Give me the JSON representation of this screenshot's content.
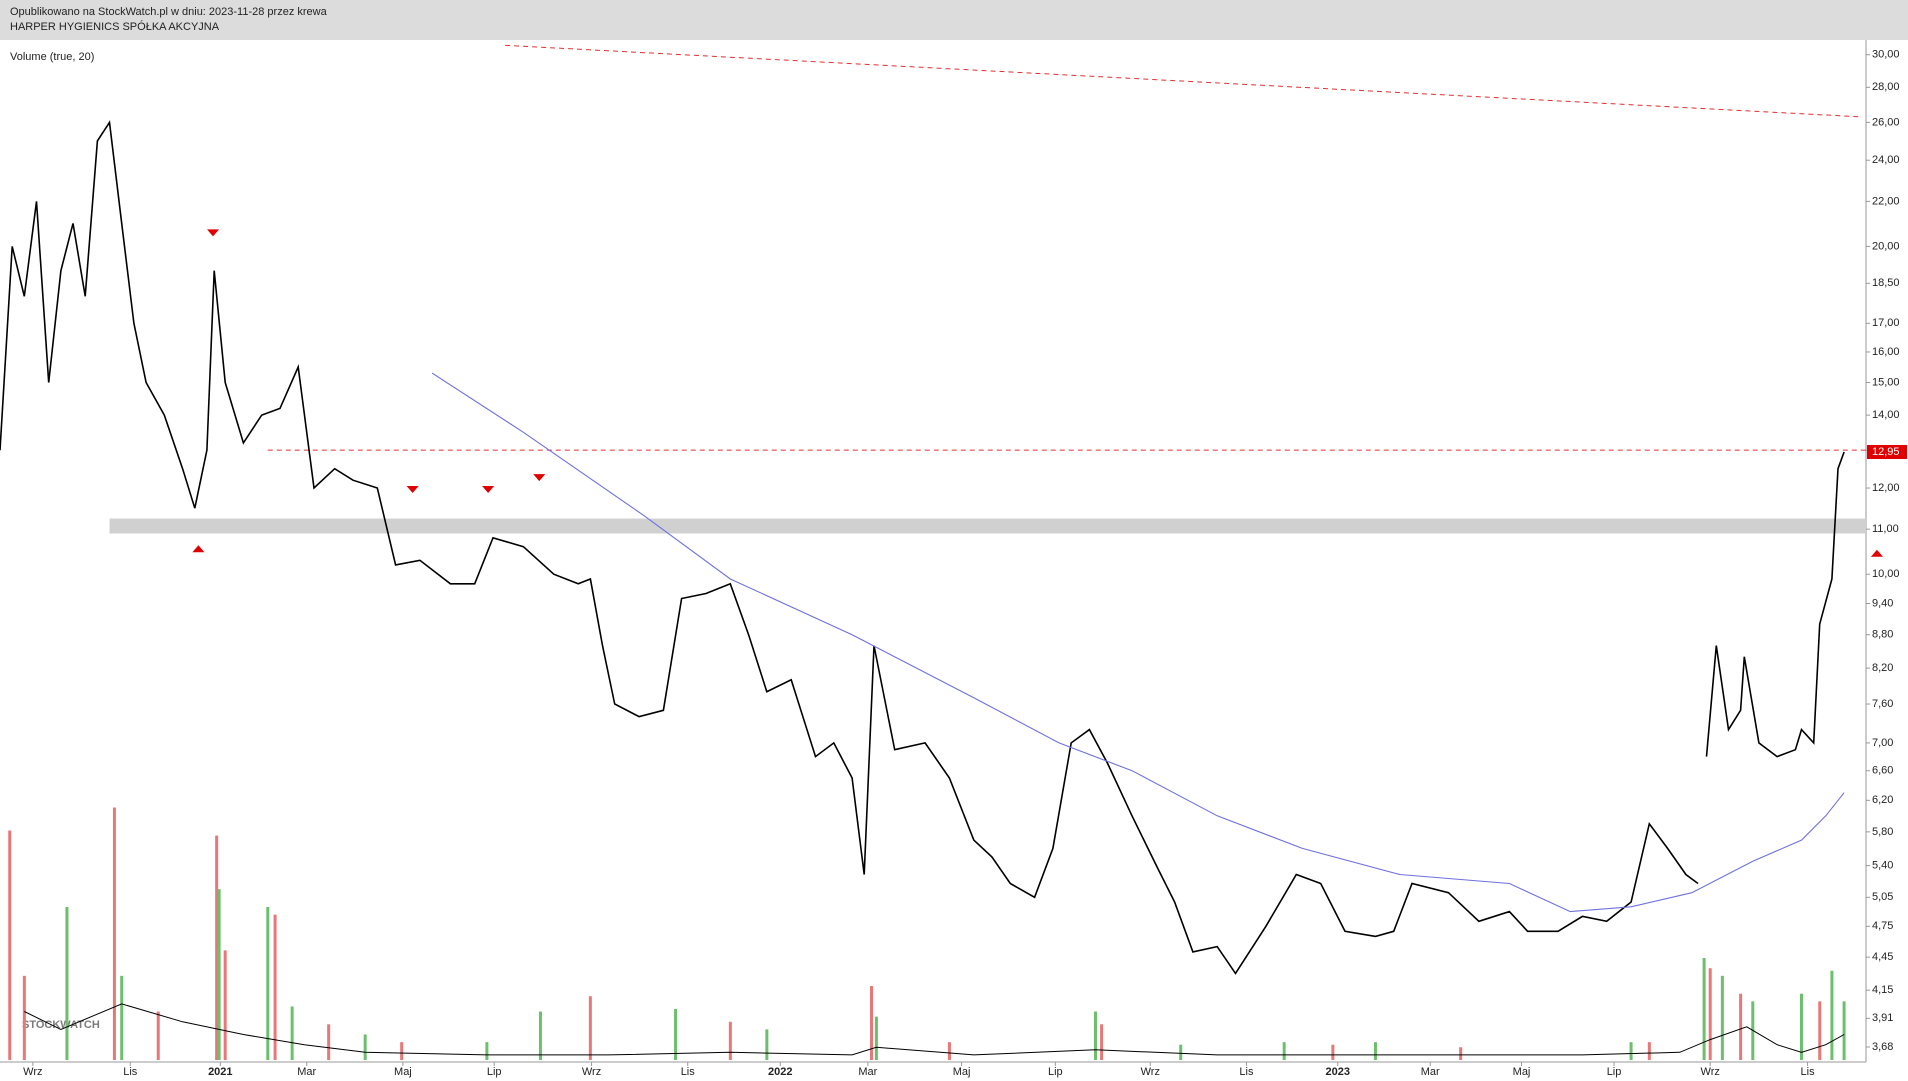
{
  "header": {
    "line1": "Opublikowano na StockWatch.pl w dniu: 2023-11-28 przez krewa",
    "line2": "HARPER HYGIENICS SPÓŁKA AKCYJNA"
  },
  "chart_data": {
    "type": "line",
    "log_scale": true,
    "indicator_label": "Volume (true, 20)",
    "watermark": "STOCKWATCH",
    "xlim": [
      0,
      1533
    ],
    "ylim": [
      3.68,
      30
    ],
    "yticks": [
      {
        "value": 30,
        "label": "30,00"
      },
      {
        "value": 28,
        "label": "28,00"
      },
      {
        "value": 26,
        "label": "26,00"
      },
      {
        "value": 24,
        "label": "24,00"
      },
      {
        "value": 22,
        "label": "22,00"
      },
      {
        "value": 20,
        "label": "20,00"
      },
      {
        "value": 18.5,
        "label": "18,50"
      },
      {
        "value": 17,
        "label": "17,00"
      },
      {
        "value": 16,
        "label": "16,00"
      },
      {
        "value": 15,
        "label": "15,00"
      },
      {
        "value": 14,
        "label": "14,00"
      },
      {
        "value": 13,
        "label": "13,00"
      },
      {
        "value": 12,
        "label": "12,00"
      },
      {
        "value": 11,
        "label": "11,00"
      },
      {
        "value": 10,
        "label": "10,00"
      },
      {
        "value": 9.4,
        "label": "9,40"
      },
      {
        "value": 8.8,
        "label": "8,80"
      },
      {
        "value": 8.2,
        "label": "8,20"
      },
      {
        "value": 7.6,
        "label": "7,60"
      },
      {
        "value": 7,
        "label": "7,00"
      },
      {
        "value": 6.6,
        "label": "6,60"
      },
      {
        "value": 6.2,
        "label": "6,20"
      },
      {
        "value": 5.8,
        "label": "5,80"
      },
      {
        "value": 5.4,
        "label": "5,40"
      },
      {
        "value": 5.05,
        "label": "5,05"
      },
      {
        "value": 4.75,
        "label": "4,75"
      },
      {
        "value": 4.45,
        "label": "4,45"
      },
      {
        "value": 4.15,
        "label": "4,15"
      },
      {
        "value": 3.91,
        "label": "3,91"
      },
      {
        "value": 3.68,
        "label": "3,68"
      }
    ],
    "xticks": [
      {
        "value": 27,
        "label": "Wrz"
      },
      {
        "value": 107,
        "label": "Lis"
      },
      {
        "value": 181,
        "label": "2021"
      },
      {
        "value": 252,
        "label": "Mar"
      },
      {
        "value": 331,
        "label": "Maj"
      },
      {
        "value": 406,
        "label": "Lip"
      },
      {
        "value": 486,
        "label": "Wrz"
      },
      {
        "value": 565,
        "label": "Lis"
      },
      {
        "value": 641,
        "label": "2022"
      },
      {
        "value": 713,
        "label": "Mar"
      },
      {
        "value": 790,
        "label": "Maj"
      },
      {
        "value": 867,
        "label": "Lip"
      },
      {
        "value": 945,
        "label": "Wrz"
      },
      {
        "value": 1024,
        "label": "Lis"
      },
      {
        "value": 1099,
        "label": "2023"
      },
      {
        "value": 1175,
        "label": "Mar"
      },
      {
        "value": 1250,
        "label": "Maj"
      },
      {
        "value": 1326,
        "label": "Lip"
      },
      {
        "value": 1405,
        "label": "Wrz"
      },
      {
        "value": 1485,
        "label": "Lis"
      }
    ],
    "series": [
      {
        "color": "#000000",
        "x": [
          0,
          10,
          20,
          30,
          40,
          50,
          60,
          70,
          80,
          90,
          100,
          110,
          120,
          135,
          150,
          160,
          170,
          176,
          185,
          200,
          215,
          230,
          245,
          258,
          275,
          290,
          310,
          325,
          345,
          370,
          390,
          405,
          430,
          455,
          475,
          485,
          495,
          505,
          525,
          545,
          560,
          580,
          600,
          615,
          630,
          650,
          670,
          685,
          700,
          710,
          718,
          735,
          760,
          780,
          800,
          815,
          830,
          850,
          865,
          880,
          895,
          910,
          930,
          950,
          965,
          980,
          1000,
          1015,
          1040,
          1065,
          1085,
          1105,
          1130,
          1145,
          1160,
          1190,
          1215,
          1240,
          1255,
          1280,
          1300,
          1320,
          1340,
          1355,
          1370,
          1385,
          1395,
          1399,
          1402,
          1410,
          1420,
          1430,
          1433,
          1445,
          1460,
          1475,
          1480,
          1490,
          1495,
          1505,
          1510,
          1515
        ],
        "values": [
          13,
          20,
          18,
          22,
          15,
          19,
          21,
          18,
          25,
          26,
          21,
          17,
          15,
          14,
          12.5,
          11.5,
          13,
          19,
          15,
          13.2,
          14,
          14.2,
          15.5,
          12,
          12.5,
          12.2,
          12,
          10.2,
          10.3,
          9.8,
          9.8,
          10.8,
          10.6,
          10,
          9.8,
          9.9,
          8.6,
          7.6,
          7.4,
          7.5,
          9.5,
          9.6,
          9.8,
          8.8,
          7.8,
          8,
          6.8,
          7,
          6.5,
          5.3,
          8.6,
          6.9,
          7,
          6.5,
          5.7,
          5.5,
          5.2,
          5.05,
          5.6,
          7,
          7.2,
          6.7,
          6,
          5.4,
          5,
          4.5,
          4.55,
          4.3,
          4.75,
          5.3,
          5.2,
          4.7,
          4.65,
          4.7,
          5.2,
          5.1,
          4.8,
          4.9,
          4.7,
          4.7,
          4.85,
          4.8,
          5,
          5.9,
          5.6,
          5.3,
          5.2,
          null,
          6.8,
          8.6,
          7.2,
          7.5,
          8.4,
          7,
          6.8,
          6.9,
          7.2,
          7,
          9,
          9.9,
          12.5,
          12.95
        ]
      },
      {
        "color": "#7070e0",
        "x": [
          355,
          430,
          530,
          600,
          700,
          800,
          870,
          930,
          1000,
          1070,
          1150,
          1240,
          1290,
          1340,
          1390,
          1440,
          1480,
          1500,
          1515
        ],
        "values": [
          15.3,
          13.5,
          11.3,
          9.9,
          8.8,
          7.7,
          7,
          6.6,
          6,
          5.6,
          5.3,
          5.2,
          4.9,
          4.95,
          5.1,
          5.45,
          5.7,
          6,
          6.3
        ]
      }
    ],
    "volume": {
      "vlim": [
        0,
        100
      ],
      "series": [
        {
          "color": "#e87878",
          "x": [
            8,
            20,
            94,
            130,
            178,
            185,
            226,
            270,
            330,
            485,
            600,
            716,
            780,
            905,
            1095,
            1200,
            1355,
            1405,
            1430,
            1495
          ],
          "values": [
            90,
            33,
            99,
            19,
            88,
            43,
            57,
            14,
            7,
            25,
            15,
            29,
            7,
            14,
            6,
            5,
            7,
            36,
            26,
            23
          ]
        },
        {
          "color": "#6cbf6c",
          "x": [
            55,
            100,
            180,
            220,
            240,
            300,
            400,
            444,
            555,
            630,
            720,
            900,
            970,
            1055,
            1130,
            1340,
            1400,
            1415,
            1440,
            1480,
            1505,
            1515
          ],
          "values": [
            60,
            33,
            67,
            60,
            21,
            10,
            7,
            19,
            20,
            12,
            17,
            19,
            6,
            7,
            7,
            7,
            40,
            33,
            23,
            26,
            35,
            23
          ]
        }
      ],
      "average": {
        "color": "#000000",
        "x": [
          20,
          50,
          100,
          150,
          200,
          250,
          300,
          400,
          500,
          600,
          700,
          720,
          800,
          900,
          1000,
          1100,
          1300,
          1380,
          1405,
          1435,
          1460,
          1480,
          1500,
          1515
        ],
        "values": [
          19,
          12,
          22,
          15,
          10,
          6,
          3,
          2,
          2,
          3,
          2,
          5,
          2,
          4,
          2,
          2,
          2,
          3,
          8,
          13,
          6,
          3,
          6,
          10
        ]
      }
    },
    "markers": [
      {
        "x": 175,
        "value": 20.3,
        "direction": "down"
      },
      {
        "x": 339,
        "value": 11.8,
        "direction": "down"
      },
      {
        "x": 401,
        "value": 11.8,
        "direction": "down"
      },
      {
        "x": 443,
        "value": 12.1,
        "direction": "down"
      },
      {
        "x": 163,
        "value": 10.7,
        "direction": "up"
      },
      {
        "x": 1542,
        "value": 10.6,
        "direction": "up"
      }
    ],
    "marker_color": "#e00000",
    "resistance": {
      "value": 13,
      "x_start": 220,
      "color": "#e03030"
    },
    "zone": {
      "low": 10.9,
      "high": 11.25,
      "x_start": 90,
      "color": "#d0d0d0"
    },
    "trendline": {
      "x": [
        415,
        1530
      ],
      "values": [
        30.6,
        26.3
      ],
      "color": "#e03030"
    },
    "last_price": {
      "value": 12.95,
      "label": "12,95",
      "color": "#e00000"
    }
  }
}
